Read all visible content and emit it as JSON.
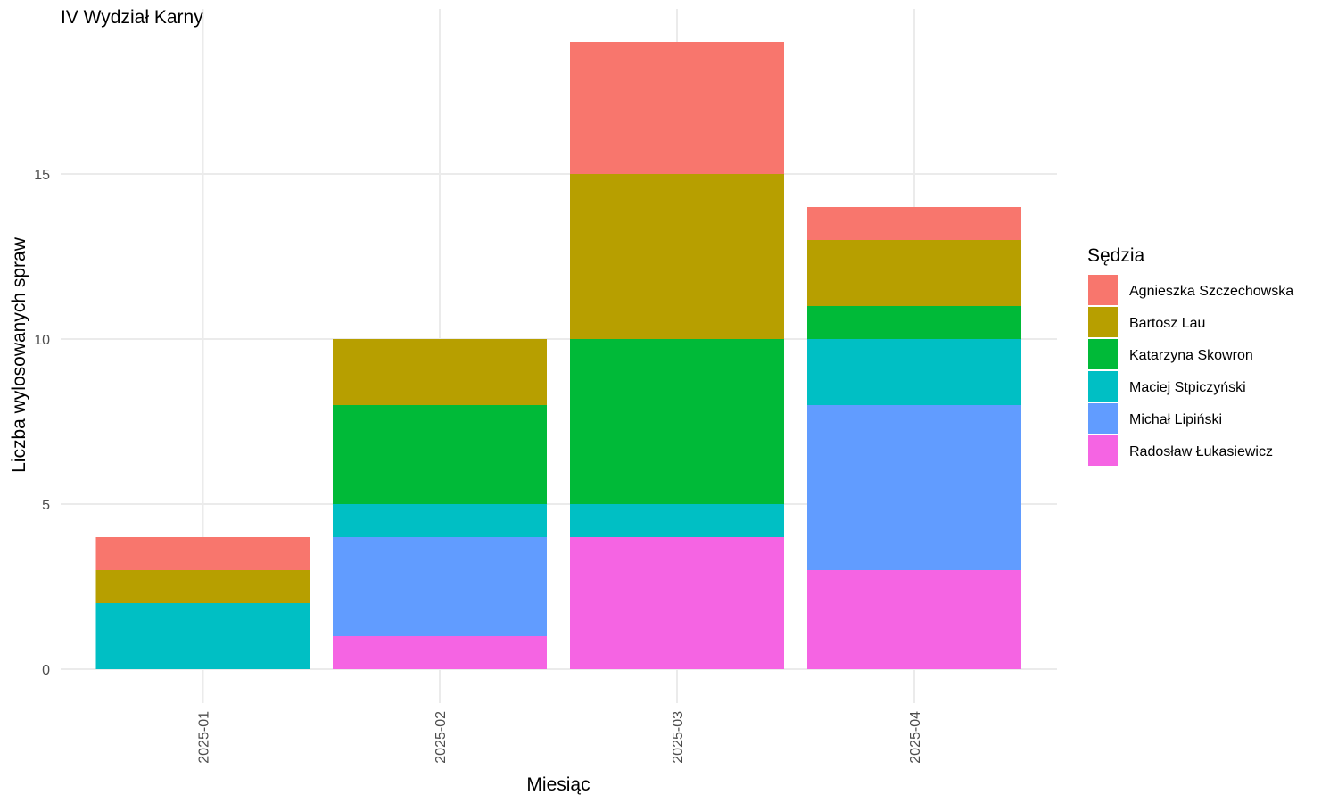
{
  "chart_data": {
    "type": "bar",
    "stacked": true,
    "title": "IV Wydział Karny",
    "xlabel": "Miesiąc",
    "ylabel": "Liczba wylosowanych spraw",
    "categories": [
      "2025-01",
      "2025-02",
      "2025-03",
      "2025-04"
    ],
    "ylim": [
      0,
      19
    ],
    "y_ticks": [
      0,
      5,
      10,
      15
    ],
    "grid": true,
    "legend": {
      "title": "Sędzia",
      "position": "right"
    },
    "series": [
      {
        "name": "Agnieszka Szczechowska",
        "color": "#F8766D",
        "values": [
          1,
          0,
          4,
          1
        ]
      },
      {
        "name": "Bartosz Lau",
        "color": "#B79F00",
        "values": [
          1,
          2,
          5,
          2
        ]
      },
      {
        "name": "Katarzyna Skowron",
        "color": "#00BA38",
        "values": [
          0,
          3,
          5,
          1
        ]
      },
      {
        "name": "Maciej Stpiczyński",
        "color": "#00BFC4",
        "values": [
          2,
          1,
          1,
          2
        ]
      },
      {
        "name": "Michał Lipiński",
        "color": "#619CFF",
        "values": [
          0,
          3,
          0,
          5
        ]
      },
      {
        "name": "Radosław Łukasiewicz",
        "color": "#F564E3",
        "values": [
          0,
          1,
          4,
          3
        ]
      }
    ]
  }
}
